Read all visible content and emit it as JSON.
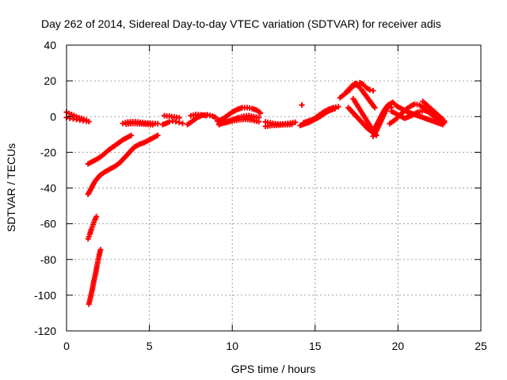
{
  "chart_data": {
    "type": "scatter",
    "title": "Day 262 of 2014, Sidereal Day-to-day VTEC variation (SDTVAR) for receiver adis",
    "xlabel": "GPS time / hours",
    "ylabel": "SDTVAR / TECUs",
    "xlim": [
      0,
      25
    ],
    "ylim": [
      -120,
      40
    ],
    "xticks": [
      0,
      5,
      10,
      15,
      20,
      25
    ],
    "yticks": [
      -120,
      -100,
      -80,
      -60,
      -40,
      -20,
      0,
      20,
      40
    ],
    "grid": true,
    "marker": "+",
    "color": "#ff0000",
    "series": [
      {
        "name": "seg-a",
        "x": [
          0.0,
          0.15,
          0.3,
          0.45,
          0.6,
          0.75,
          0.9,
          1.05,
          1.2,
          1.35
        ],
        "y": [
          2.5,
          1.8,
          1.2,
          0.6,
          0.0,
          -0.6,
          -1.0,
          -1.5,
          -2.0,
          -2.8
        ]
      },
      {
        "name": "seg-b",
        "x": [
          0.0,
          0.2,
          0.4,
          0.6,
          0.8,
          1.0,
          1.2
        ],
        "y": [
          -0.5,
          -1.0,
          -1.3,
          -1.6,
          -2.0,
          -2.3,
          -2.6
        ]
      },
      {
        "name": "seg-c",
        "x": [
          1.3,
          1.6,
          1.9,
          2.2,
          2.5,
          2.8,
          3.1,
          3.4,
          3.7,
          3.9
        ],
        "y": [
          -26.5,
          -25.0,
          -23.5,
          -21.5,
          -19.0,
          -17.0,
          -15.0,
          -13.0,
          -11.5,
          -10.5
        ]
      },
      {
        "name": "seg-d",
        "x": [
          1.3,
          1.5,
          1.7,
          2.0,
          2.3,
          2.6,
          2.9,
          3.2,
          3.5,
          3.8,
          4.1,
          4.4,
          4.7,
          5.0,
          5.3,
          5.5
        ],
        "y": [
          -43.5,
          -40.0,
          -36.5,
          -33.0,
          -31.0,
          -29.5,
          -28.0,
          -26.0,
          -23.0,
          -20.0,
          -17.0,
          -15.5,
          -14.5,
          -13.0,
          -11.5,
          -10.5
        ]
      },
      {
        "name": "seg-e",
        "x": [
          1.3,
          1.4,
          1.5,
          1.6,
          1.7,
          1.8
        ],
        "y": [
          -68.5,
          -66.0,
          -63.0,
          -60.5,
          -58.0,
          -56.0
        ]
      },
      {
        "name": "seg-f",
        "x": [
          1.35,
          1.45,
          1.55,
          1.65,
          1.75,
          1.85,
          1.95,
          2.05
        ],
        "y": [
          -105.0,
          -101.0,
          -97.0,
          -92.0,
          -88.0,
          -83.0,
          -78.5,
          -74.5
        ]
      },
      {
        "name": "seg-g",
        "x": [
          3.4,
          3.7,
          4.0,
          4.3,
          4.6,
          4.9,
          5.2,
          5.5
        ],
        "y": [
          -3.8,
          -3.0,
          -2.8,
          -3.0,
          -3.4,
          -3.6,
          -3.8,
          -4.0
        ]
      },
      {
        "name": "seg-h",
        "x": [
          3.6,
          4.0,
          4.4,
          4.8,
          5.2
        ],
        "y": [
          -4.2,
          -3.8,
          -4.0,
          -4.3,
          -4.6
        ]
      },
      {
        "name": "seg-i",
        "x": [
          5.8,
          6.0,
          6.2,
          6.4,
          6.6,
          6.8,
          7.0
        ],
        "y": [
          -4.5,
          -3.8,
          -3.0,
          -2.5,
          -2.8,
          -3.3,
          -3.8
        ]
      },
      {
        "name": "seg-j",
        "x": [
          5.9,
          6.2,
          6.5,
          6.8
        ],
        "y": [
          0.5,
          0.2,
          -0.2,
          -0.6
        ]
      },
      {
        "name": "seg-k",
        "x": [
          7.3,
          7.6,
          7.9,
          8.2,
          8.5,
          8.8,
          9.0
        ],
        "y": [
          -4.5,
          -2.5,
          -0.5,
          0.8,
          1.0,
          0.3,
          -0.5
        ]
      },
      {
        "name": "seg-l",
        "x": [
          7.5,
          7.8,
          8.1,
          8.4
        ],
        "y": [
          0.5,
          1.2,
          1.0,
          0.5
        ]
      },
      {
        "name": "seg-m",
        "x": [
          9.1,
          9.4,
          9.7,
          10.0,
          10.3,
          10.6,
          10.9,
          11.2,
          11.5,
          11.7
        ],
        "y": [
          -2.5,
          -1.5,
          0.5,
          2.5,
          4.0,
          5.0,
          5.0,
          4.5,
          3.5,
          2.0
        ]
      },
      {
        "name": "seg-n",
        "x": [
          9.2,
          9.5,
          9.8,
          10.1,
          10.4,
          10.7,
          11.0,
          11.3,
          11.6
        ],
        "y": [
          -4.5,
          -3.5,
          -2.5,
          -1.5,
          -0.5,
          0.3,
          0.5,
          0.0,
          -0.5
        ]
      },
      {
        "name": "seg-o",
        "x": [
          9.6,
          10.0,
          10.4,
          10.8,
          11.2,
          11.6
        ],
        "y": [
          -3.5,
          -2.5,
          -1.8,
          -1.5,
          -2.0,
          -2.8
        ]
      },
      {
        "name": "seg-p",
        "x": [
          12.0,
          12.3,
          12.6,
          12.9,
          13.2,
          13.5,
          13.8
        ],
        "y": [
          -3.0,
          -3.5,
          -4.0,
          -4.2,
          -4.0,
          -3.6,
          -3.2
        ]
      },
      {
        "name": "seg-q",
        "x": [
          12.0,
          12.4,
          12.8,
          13.2,
          13.6
        ],
        "y": [
          -5.5,
          -5.0,
          -4.8,
          -4.6,
          -4.4
        ]
      },
      {
        "name": "seg-r",
        "x": [
          14.2
        ],
        "y": [
          6.5
        ]
      },
      {
        "name": "seg-s",
        "x": [
          14.1,
          14.4,
          14.7,
          15.0,
          15.3,
          15.6,
          15.9,
          16.2
        ],
        "y": [
          -5.0,
          -4.0,
          -3.0,
          -1.5,
          0.0,
          2.0,
          3.5,
          4.5
        ]
      },
      {
        "name": "seg-t",
        "x": [
          14.3,
          14.6,
          14.9,
          15.2,
          15.5,
          15.8,
          16.1,
          16.4
        ],
        "y": [
          -3.5,
          -2.5,
          -1.5,
          0.5,
          2.5,
          4.0,
          5.0,
          5.5
        ]
      },
      {
        "name": "seg-u",
        "x": [
          16.5,
          16.7,
          16.9,
          17.1,
          17.3,
          17.5,
          17.7,
          17.9,
          18.1,
          18.3,
          18.5
        ],
        "y": [
          10.5,
          12.0,
          13.5,
          15.0,
          17.0,
          18.5,
          19.0,
          18.0,
          16.0,
          15.0,
          14.5
        ]
      },
      {
        "name": "seg-v",
        "x": [
          16.8,
          17.0,
          17.2,
          17.4,
          17.6,
          17.8,
          18.0,
          18.2,
          18.4,
          18.6
        ],
        "y": [
          13.0,
          15.0,
          17.0,
          18.5,
          17.0,
          15.0,
          12.5,
          10.0,
          7.5,
          5.0
        ]
      },
      {
        "name": "seg-w",
        "x": [
          17.3,
          17.5,
          17.7,
          17.9,
          18.1,
          18.3,
          18.5,
          18.7
        ],
        "y": [
          10.0,
          7.0,
          4.0,
          1.0,
          -2.0,
          -5.0,
          -8.0,
          -10.5
        ]
      },
      {
        "name": "seg-x",
        "x": [
          17.0,
          17.3,
          17.6,
          17.9,
          18.2,
          18.5
        ],
        "y": [
          5.0,
          2.0,
          -1.0,
          -4.0,
          -7.0,
          -9.0
        ]
      },
      {
        "name": "seg-y",
        "x": [
          18.5,
          18.7,
          18.9,
          19.1,
          19.3,
          19.5,
          19.7,
          19.9
        ],
        "y": [
          -11.0,
          -8.0,
          -4.0,
          0.0,
          4.0,
          7.0,
          8.0,
          6.0
        ]
      },
      {
        "name": "seg-z",
        "x": [
          18.6,
          18.8,
          19.0,
          19.2,
          19.4,
          19.6
        ],
        "y": [
          -6.5,
          -3.0,
          0.5,
          4.0,
          6.5,
          5.0
        ]
      },
      {
        "name": "seg-aa",
        "x": [
          19.5,
          19.8,
          20.1,
          20.4,
          20.7,
          21.0,
          21.3,
          21.6,
          21.9,
          22.2,
          22.5,
          22.8
        ],
        "y": [
          -4.0,
          -2.0,
          0.5,
          3.5,
          5.5,
          7.0,
          6.5,
          4.5,
          2.0,
          0.0,
          -1.5,
          -2.5
        ]
      },
      {
        "name": "seg-ab",
        "x": [
          19.6,
          20.0,
          20.4,
          20.8,
          21.2,
          21.6,
          22.0,
          22.4,
          22.8
        ],
        "y": [
          3.0,
          1.0,
          -1.0,
          0.5,
          2.5,
          3.5,
          2.0,
          -1.0,
          -3.5
        ]
      },
      {
        "name": "seg-ac",
        "x": [
          20.0,
          20.3,
          20.6,
          20.9,
          21.2,
          21.5,
          21.8,
          22.1,
          22.4,
          22.7
        ],
        "y": [
          5.5,
          4.0,
          2.5,
          1.5,
          0.5,
          -0.5,
          -1.5,
          -2.5,
          -3.5,
          -4.5
        ]
      },
      {
        "name": "seg-ad",
        "x": [
          21.5,
          21.8,
          22.1,
          22.4,
          22.7
        ],
        "y": [
          8.5,
          6.0,
          3.5,
          1.0,
          -1.5
        ]
      }
    ]
  }
}
